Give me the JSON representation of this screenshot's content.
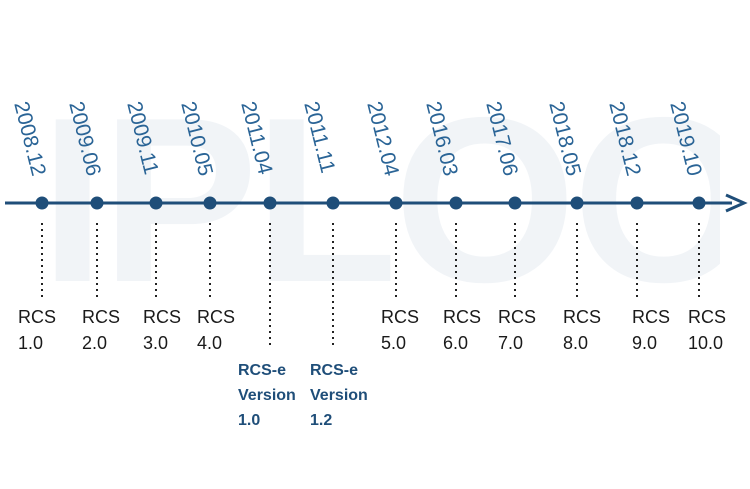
{
  "watermark": "IPLOOK",
  "colors": {
    "axis": "#1f4e79",
    "marker": "#1f4e79",
    "date_text": "#2a6496",
    "rcs_text": "#1a1a1a",
    "rcse_text": "#1f4e79",
    "watermark": "#e6ecf2"
  },
  "events": [
    {
      "date": "2008.12",
      "line1": "RCS",
      "line2": "1.0"
    },
    {
      "date": "2009.06",
      "line1": "RCS",
      "line2": "2.0"
    },
    {
      "date": "2009.11",
      "line1": "RCS",
      "line2": "3.0"
    },
    {
      "date": "2010.05",
      "line1": "RCS",
      "line2": "4.0"
    },
    {
      "date": "2011.04",
      "line1": "RCS-e",
      "line2": "Version",
      "line3": "1.0"
    },
    {
      "date": "2011.11",
      "line1": "RCS-e",
      "line2": "Version",
      "line3": "1.2"
    },
    {
      "date": "2012.04",
      "line1": "RCS",
      "line2": "5.0"
    },
    {
      "date": "2016.03",
      "line1": "RCS",
      "line2": "6.0"
    },
    {
      "date": "2017.06",
      "line1": "RCS",
      "line2": "7.0"
    },
    {
      "date": "2018.05",
      "line1": "RCS",
      "line2": "8.0"
    },
    {
      "date": "2018.12",
      "line1": "RCS",
      "line2": "9.0"
    },
    {
      "date": "2019.10",
      "line1": "RCS",
      "line2": "10.0"
    }
  ]
}
